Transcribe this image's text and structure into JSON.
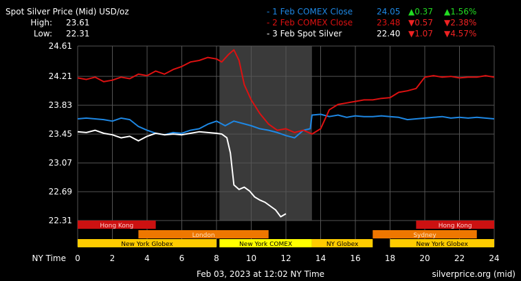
{
  "header": {
    "title": "Spot Silver Price (Mid) USD/oz",
    "high_label": "High:",
    "high_value": "23.61",
    "low_label": "Low:",
    "low_value": "22.31"
  },
  "legend": [
    {
      "name": "- 1 Feb COMEX Close",
      "value": "24.05",
      "change": "▲0.37",
      "pct": "▲1.56%",
      "color": "#1e88e5",
      "change_color": "#22dd22"
    },
    {
      "name": "- 2 Feb COMEX Close",
      "value": "23.48",
      "change": "▼0.57",
      "pct": "▼2.38%",
      "color": "#dd1111",
      "change_color": "#ee2222"
    },
    {
      "name": "- 3 Feb Spot Silver",
      "value": "22.40",
      "change": "▼1.07",
      "pct": "▼4.57%",
      "color": "#ffffff",
      "change_color": "#ee2222"
    }
  ],
  "footer": {
    "date_label": "Feb 03, 2023 at 12:02 NY Time",
    "source": "silverprice.org (mid)"
  },
  "colors": {
    "background": "#000000",
    "grid": "#555555",
    "highlight": "#3a3a3a",
    "asia": "#cc1111",
    "europe": "#ee7700",
    "america": "#ffcc00",
    "comex": "#ffff00"
  },
  "sessions": [
    {
      "name": "Hong Kong",
      "start": 0,
      "end": 4.5,
      "row": 0,
      "color": "#cc1111",
      "text_color": "#ffcccc"
    },
    {
      "name": "Hong Kong",
      "start": 19.5,
      "end": 24,
      "row": 0,
      "color": "#cc1111",
      "text_color": "#ffcccc"
    },
    {
      "name": "London",
      "start": 3.5,
      "end": 11,
      "row": 1,
      "color": "#ee7700",
      "text_color": "#ffe0c0"
    },
    {
      "name": "Sydney",
      "start": 17,
      "end": 23,
      "row": 1,
      "color": "#ee7700",
      "text_color": "#ffe0c0"
    },
    {
      "name": "New York Globex",
      "start": 0,
      "end": 8,
      "row": 2,
      "color": "#ffcc00",
      "text_color": "#000000"
    },
    {
      "name": "New York COMEX",
      "start": 8.17,
      "end": 13.5,
      "row": 2,
      "color": "#ffff00",
      "text_color": "#000000"
    },
    {
      "name": "NY Globex",
      "start": 13.5,
      "end": 17,
      "row": 2,
      "color": "#ffcc00",
      "text_color": "#000000"
    },
    {
      "name": "New York Globex",
      "start": 18,
      "end": 24,
      "row": 2,
      "color": "#ffcc00",
      "text_color": "#000000"
    }
  ],
  "chart_data": {
    "type": "line",
    "title": "Spot Silver Price (Mid) USD/oz",
    "xlabel": "NY Time",
    "ylabel": "",
    "x_ticks": [
      0,
      2,
      4,
      6,
      8,
      10,
      12,
      14,
      16,
      18,
      20,
      22,
      24
    ],
    "y_ticks": [
      "24.61",
      "24.21",
      "23.83",
      "23.45",
      "23.07",
      "22.69",
      "22.31"
    ],
    "xlim": [
      0,
      24
    ],
    "ylim": [
      22.31,
      24.61
    ],
    "grid": true,
    "highlight_range": [
      8.17,
      13.5
    ],
    "series": [
      {
        "name": "- 1 Feb COMEX Close",
        "color": "#1e88e5",
        "x": [
          0,
          0.5,
          1,
          1.5,
          2,
          2.5,
          3,
          3.5,
          4,
          4.5,
          5,
          5.5,
          6,
          6.5,
          7,
          7.5,
          8,
          8.5,
          9,
          9.5,
          10,
          10.5,
          11,
          11.5,
          12,
          12.5,
          13,
          13.4,
          13.5,
          14,
          14.5,
          15,
          15.5,
          16,
          16.5,
          17,
          17.5,
          18,
          18.5,
          19,
          19.5,
          20,
          20.5,
          21,
          21.5,
          22,
          22.5,
          23,
          23.5,
          24
        ],
        "values": [
          23.65,
          23.66,
          23.65,
          23.64,
          23.62,
          23.66,
          23.64,
          23.55,
          23.5,
          23.46,
          23.44,
          23.47,
          23.46,
          23.5,
          23.52,
          23.58,
          23.62,
          23.56,
          23.62,
          23.59,
          23.56,
          23.52,
          23.5,
          23.47,
          23.43,
          23.4,
          23.5,
          23.52,
          23.7,
          23.71,
          23.68,
          23.7,
          23.67,
          23.69,
          23.68,
          23.68,
          23.69,
          23.68,
          23.67,
          23.64,
          23.65,
          23.66,
          23.67,
          23.68,
          23.66,
          23.67,
          23.66,
          23.67,
          23.66,
          23.65
        ]
      },
      {
        "name": "- 2 Feb COMEX Close",
        "color": "#dd1111",
        "x": [
          0,
          0.5,
          1,
          1.5,
          2,
          2.5,
          3,
          3.5,
          4,
          4.5,
          5,
          5.5,
          6,
          6.5,
          7,
          7.5,
          8,
          8.3,
          8.7,
          9,
          9.3,
          9.6,
          10,
          10.5,
          11,
          11.5,
          12,
          12.5,
          13,
          13.5,
          14,
          14.5,
          15,
          15.5,
          16,
          16.5,
          17,
          17.5,
          18,
          18.5,
          19,
          19.5,
          20,
          20.5,
          21,
          21.5,
          22,
          22.5,
          23,
          23.5,
          24
        ],
        "values": [
          24.19,
          24.17,
          24.2,
          24.14,
          24.16,
          24.2,
          24.18,
          24.24,
          24.22,
          24.28,
          24.24,
          24.3,
          24.34,
          24.4,
          24.42,
          24.46,
          24.44,
          24.4,
          24.5,
          24.56,
          24.42,
          24.1,
          23.9,
          23.72,
          23.58,
          23.5,
          23.52,
          23.47,
          23.5,
          23.45,
          23.52,
          23.77,
          23.84,
          23.86,
          23.88,
          23.9,
          23.9,
          23.92,
          23.93,
          24.0,
          24.02,
          24.05,
          24.2,
          24.22,
          24.2,
          24.21,
          24.19,
          24.2,
          24.2,
          24.22,
          24.2
        ]
      },
      {
        "name": "- 3 Feb Spot Silver",
        "color": "#ffffff",
        "x": [
          0,
          0.5,
          1,
          1.5,
          2,
          2.5,
          3,
          3.5,
          4,
          4.5,
          5,
          5.5,
          6,
          6.5,
          7,
          7.5,
          8,
          8.3,
          8.6,
          8.8,
          9,
          9.3,
          9.6,
          9.9,
          10.2,
          10.5,
          10.8,
          11.1,
          11.4,
          11.7,
          12.0
        ],
        "values": [
          23.48,
          23.47,
          23.5,
          23.46,
          23.44,
          23.4,
          23.42,
          23.36,
          23.42,
          23.46,
          23.44,
          23.45,
          23.44,
          23.46,
          23.48,
          23.47,
          23.46,
          23.45,
          23.4,
          23.2,
          22.78,
          22.72,
          22.75,
          22.7,
          22.62,
          22.58,
          22.55,
          22.5,
          22.45,
          22.36,
          22.4
        ]
      }
    ]
  }
}
